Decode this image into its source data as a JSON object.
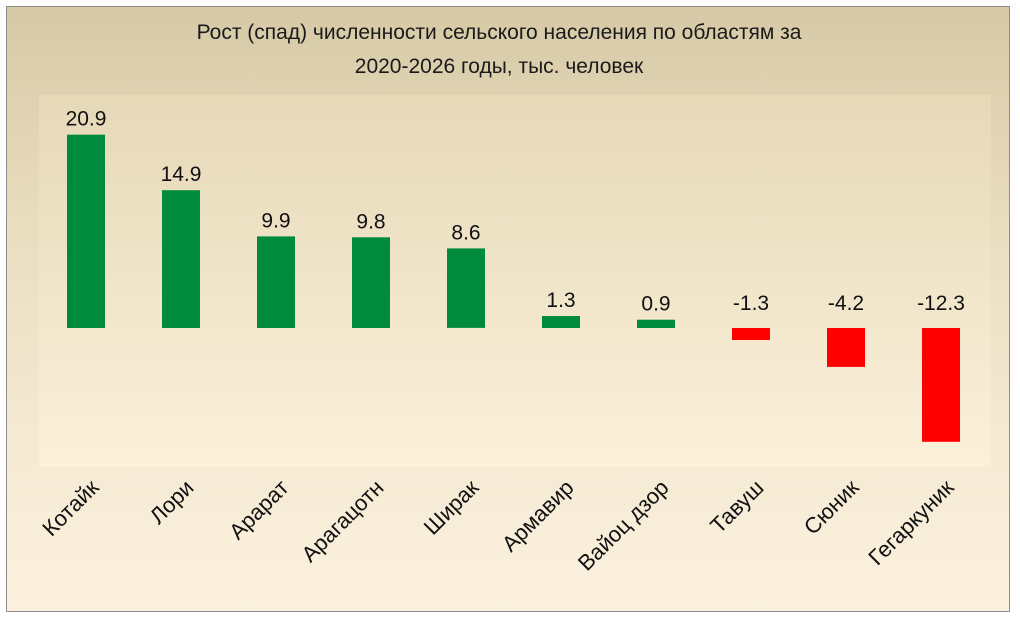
{
  "chart_data": {
    "type": "bar",
    "title_lines": [
      "Рост (спад) численности сельского населения по областям за",
      "2020-2026 годы, тыс. человек"
    ],
    "categories": [
      "Котайк",
      "Лори",
      "Арарат",
      "Арагацотн",
      "Ширак",
      "Армавир",
      "Вайоц дзор",
      "Тавуш",
      "Сюник",
      "Гегаркуник"
    ],
    "values": [
      20.9,
      14.9,
      9.9,
      9.8,
      8.6,
      1.3,
      0.9,
      -1.3,
      -4.2,
      -12.3
    ],
    "data_labels": [
      "20.9",
      "14.9",
      "9.9",
      "9.8",
      "8.6",
      "1.3",
      "0.9",
      "-1.3",
      "-4.2",
      "-12.3"
    ],
    "xlabel": "",
    "ylabel": "",
    "ylim": [
      -15,
      25
    ],
    "grid": false,
    "legend": "none",
    "colors": {
      "positive": "#008a3e",
      "negative": "#ff0000"
    }
  }
}
